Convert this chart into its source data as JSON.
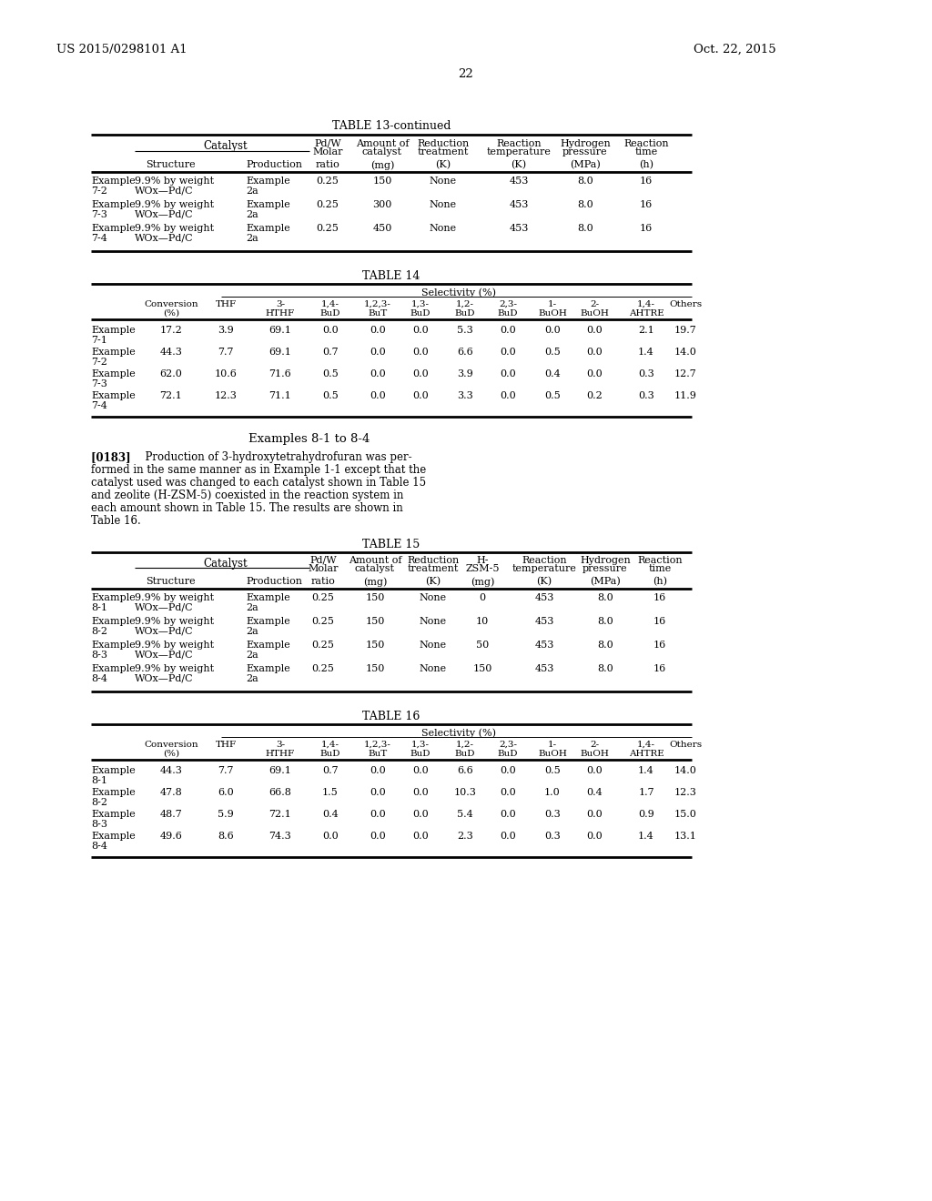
{
  "header_left": "US 2015/0298101 A1",
  "header_right": "Oct. 22, 2015",
  "page_number": "22",
  "bg": "#ffffff",
  "table13_title": "TABLE 13-continued",
  "table13_data": [
    [
      "Example\n7-2",
      "9.9% by weight\nWOx—Pd/C",
      "Example\n2a",
      "0.25",
      "150",
      "None",
      "453",
      "8.0",
      "16"
    ],
    [
      "Example\n7-3",
      "9.9% by weight\nWOx—Pd/C",
      "Example\n2a",
      "0.25",
      "300",
      "None",
      "453",
      "8.0",
      "16"
    ],
    [
      "Example\n7-4",
      "9.9% by weight\nWOx—Pd/C",
      "Example\n2a",
      "0.25",
      "450",
      "None",
      "453",
      "8.0",
      "16"
    ]
  ],
  "table14_title": "TABLE 14",
  "table14_selectivity_header": "Selectivity (%)",
  "table14_col_headers": [
    "Conversion\n(%)",
    "THF",
    "3-\nHTHF",
    "1,4-\nBuD",
    "1,2,3-\nBuT",
    "1,3-\nBuD",
    "1,2-\nBuD",
    "2,3-\nBuD",
    "1-\nBuOH",
    "2-\nBuOH",
    "1,4-\nAHTRE",
    "Others"
  ],
  "table14_data": [
    [
      "Example\n7-1",
      "17.2",
      "3.9",
      "69.1",
      "0.0",
      "0.0",
      "0.0",
      "5.3",
      "0.0",
      "0.0",
      "0.0",
      "2.1",
      "19.7"
    ],
    [
      "Example\n7-2",
      "44.3",
      "7.7",
      "69.1",
      "0.7",
      "0.0",
      "0.0",
      "6.6",
      "0.0",
      "0.5",
      "0.0",
      "1.4",
      "14.0"
    ],
    [
      "Example\n7-3",
      "62.0",
      "10.6",
      "71.6",
      "0.5",
      "0.0",
      "0.0",
      "3.9",
      "0.0",
      "0.4",
      "0.0",
      "0.3",
      "12.7"
    ],
    [
      "Example\n7-4",
      "72.1",
      "12.3",
      "71.1",
      "0.5",
      "0.0",
      "0.0",
      "3.3",
      "0.0",
      "0.5",
      "0.2",
      "0.3",
      "11.9"
    ]
  ],
  "examples_heading": "Examples 8-1 to 8-4",
  "para_line1": "[0183]   Production of 3-hydroxytetrahydrofuran was per-",
  "para_lines": [
    "formed in the same manner as in Example 1-1 except that the",
    "catalyst used was changed to each catalyst shown in Table 15",
    "and zeolite (H-ZSM-5) coexisted in the reaction system in",
    "each amount shown in Table 15. The results are shown in",
    "Table 16."
  ],
  "table15_title": "TABLE 15",
  "table15_data": [
    [
      "Example\n8-1",
      "9.9% by weight\nWOx—Pd/C",
      "Example\n2a",
      "0.25",
      "150",
      "None",
      "0",
      "453",
      "8.0",
      "16"
    ],
    [
      "Example\n8-2",
      "9.9% by weight\nWOx—Pd/C",
      "Example\n2a",
      "0.25",
      "150",
      "None",
      "10",
      "453",
      "8.0",
      "16"
    ],
    [
      "Example\n8-3",
      "9.9% by weight\nWOx—Pd/C",
      "Example\n2a",
      "0.25",
      "150",
      "None",
      "50",
      "453",
      "8.0",
      "16"
    ],
    [
      "Example\n8-4",
      "9.9% by weight\nWOx—Pd/C",
      "Example\n2a",
      "0.25",
      "150",
      "None",
      "150",
      "453",
      "8.0",
      "16"
    ]
  ],
  "table16_title": "TABLE 16",
  "table16_selectivity_header": "Selectivity (%)",
  "table16_col_headers": [
    "Conversion\n(%)",
    "THF",
    "3-\nHTHF",
    "1,4-\nBuD",
    "1,2,3-\nBuT",
    "1,3-\nBuD",
    "1,2-\nBuD",
    "2,3-\nBuD",
    "1-\nBuOH",
    "2-\nBuOH",
    "1,4-\nAHTRE",
    "Others"
  ],
  "table16_data": [
    [
      "Example\n8-1",
      "44.3",
      "7.7",
      "69.1",
      "0.7",
      "0.0",
      "0.0",
      "6.6",
      "0.0",
      "0.5",
      "0.0",
      "1.4",
      "14.0"
    ],
    [
      "Example\n8-2",
      "47.8",
      "6.0",
      "66.8",
      "1.5",
      "0.0",
      "0.0",
      "10.3",
      "0.0",
      "1.0",
      "0.4",
      "1.7",
      "12.3"
    ],
    [
      "Example\n8-3",
      "48.7",
      "5.9",
      "72.1",
      "0.4",
      "0.0",
      "0.0",
      "5.4",
      "0.0",
      "0.3",
      "0.0",
      "0.9",
      "15.0"
    ],
    [
      "Example\n8-4",
      "49.6",
      "8.6",
      "74.3",
      "0.0",
      "0.0",
      "0.0",
      "2.3",
      "0.0",
      "0.3",
      "0.0",
      "1.4",
      "13.1"
    ]
  ]
}
